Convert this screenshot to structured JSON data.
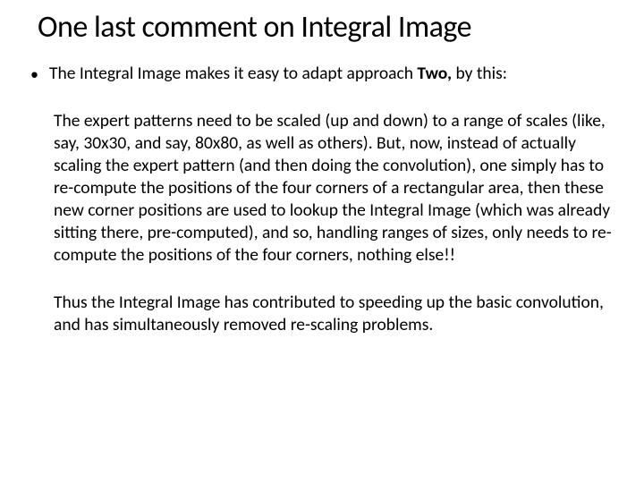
{
  "title": "One last comment on Integral Image",
  "bullet_prefix": "The Integral Image makes it easy to adapt approach ",
  "bullet_bold": "Two,",
  "bullet_suffix": " by this:",
  "para1": "The expert patterns need to be scaled (up and down) to a range of scales (like, say, 30x30, and say, 80x80, as well as others). But, now, instead of actually scaling the expert pattern (and then doing the convolution), one simply has to re-compute the positions of the four corners of a rectangular area, then these new corner positions are used to lookup the Integral Image (which was already sitting there, pre-computed), and so, handling ranges of sizes, only needs to re-compute the positions of the  four corners, nothing else!!",
  "para2": "Thus the Integral Image has contributed to speeding up the basic convolution, and has simultaneously  removed re-scaling problems.",
  "colors": {
    "text": "#000000",
    "background": "#ffffff"
  },
  "fonts": {
    "title_size": 34,
    "body_size": 19.5,
    "family": "Calibri"
  }
}
